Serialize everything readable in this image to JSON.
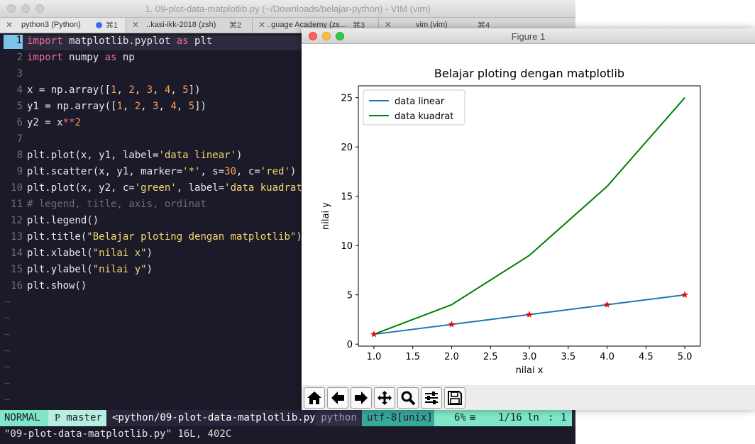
{
  "terminal": {
    "window_title": "1. 09-plot-data-matplotlib.py (~/Downloads/belajar-python) - VIM (vim)",
    "tabs": [
      {
        "name": "python3 (Python)",
        "shortcut": "⌘1",
        "active": true
      },
      {
        "name": "..kasi-ikk-2018 (zsh)",
        "shortcut": "⌘2"
      },
      {
        "name": "..guage Academy (zs...",
        "shortcut": "⌘3"
      },
      {
        "name": "vim (vim)",
        "shortcut": "⌘4"
      }
    ]
  },
  "editor": {
    "line_numbers": [
      "1",
      "2",
      "3",
      "4",
      "5",
      "6",
      "7",
      "8",
      "9",
      "10",
      "11",
      "12",
      "13",
      "14",
      "15",
      "16"
    ],
    "tokens": {
      "l1": [
        "import",
        " matplotlib.pyplot ",
        "as",
        " plt"
      ],
      "l2": [
        "import",
        " numpy ",
        "as",
        " np"
      ],
      "l4": [
        "x = np.array([",
        "1",
        ", ",
        "2",
        ", ",
        "3",
        ", ",
        "4",
        ", ",
        "5",
        "])"
      ],
      "l5": [
        "y1 = np.array([",
        "1",
        ", ",
        "2",
        ", ",
        "3",
        ", ",
        "4",
        ", ",
        "5",
        "])"
      ],
      "l6": [
        "y2 = x",
        "**",
        "2"
      ],
      "l8": [
        "plt.plot(x, y1, label=",
        "'data linear'",
        ")"
      ],
      "l9": [
        "plt.scatter(x, y1, marker=",
        "'*'",
        ", s=",
        "30",
        ", c=",
        "'red'",
        ")"
      ],
      "l10": [
        "plt.plot(x, y2, c=",
        "'green'",
        ", label=",
        "'data kuadrat'",
        ")"
      ],
      "l11": [
        "# legend, title, axis, ordinat"
      ],
      "l12": [
        "plt.legend()"
      ],
      "l13": [
        "plt.title(",
        "\"Belajar ploting dengan matplotlib\"",
        ")"
      ],
      "l14": [
        "plt.xlabel(",
        "\"nilai x\"",
        ")"
      ],
      "l15": [
        "plt.ylabel(",
        "\"nilai y\"",
        ")"
      ],
      "l16": [
        "plt.show()"
      ]
    },
    "tilde": "~"
  },
  "statusline": {
    "mode": "NORMAL",
    "branch_icon": "Ᵽ",
    "branch": "master",
    "file": "<python/09-plot-data-matplotlib.py",
    "filetype": "python",
    "encoding": "utf-8[unix]",
    "percent": "6%",
    "percent_icon": "≡",
    "position": "1/16",
    "ln_label": "ln",
    "col_sep": ":",
    "column": "1"
  },
  "cmdline": "\"09-plot-data-matplotlib.py\" 16L, 402C",
  "figure": {
    "window_title": "Figure 1",
    "toolbar": [
      "home-icon",
      "back-arrow-icon",
      "forward-arrow-icon",
      "pan-icon",
      "zoom-icon",
      "configure-subplots-icon",
      "save-icon"
    ]
  },
  "chart_data": {
    "type": "line",
    "title": "Belajar ploting dengan matplotlib",
    "xlabel": "nilai x",
    "ylabel": "nilai y",
    "x": [
      1,
      2,
      3,
      4,
      5
    ],
    "series": [
      {
        "name": "data linear",
        "values": [
          1,
          2,
          3,
          4,
          5
        ],
        "color": "#1f77b4"
      },
      {
        "name": "data kuadrat",
        "values": [
          1,
          4,
          9,
          16,
          25
        ],
        "color": "#008000"
      }
    ],
    "scatter": {
      "x": [
        1,
        2,
        3,
        4,
        5
      ],
      "y": [
        1,
        2,
        3,
        4,
        5
      ],
      "marker": "*",
      "color": "red"
    },
    "xlim": [
      0.8,
      5.2
    ],
    "ylim": [
      -0.2,
      26.2
    ],
    "xticks": [
      "1.0",
      "1.5",
      "2.0",
      "2.5",
      "3.0",
      "3.5",
      "4.0",
      "4.5",
      "5.0"
    ],
    "yticks": [
      "0",
      "5",
      "10",
      "15",
      "20",
      "25"
    ],
    "legend_position": "top-left",
    "grid": false
  }
}
